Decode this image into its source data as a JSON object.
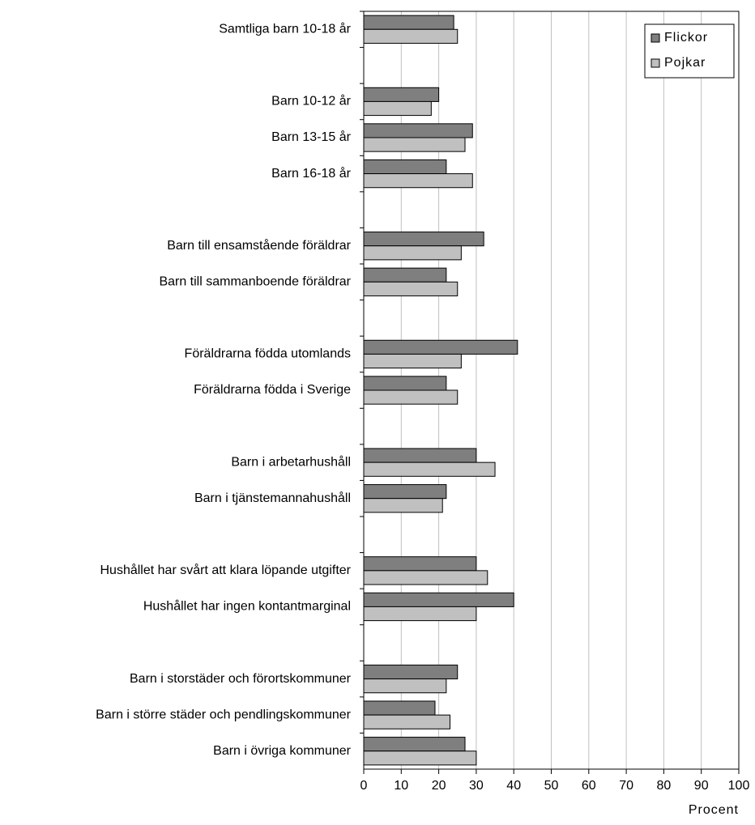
{
  "chart_data": {
    "type": "barh",
    "x_label": "Procent",
    "categories": [
      "Samtliga barn 10-18 år",
      null,
      "Barn 10-12 år",
      "Barn 13-15 år",
      "Barn 16-18 år",
      null,
      "Barn till ensamstående föräldrar",
      "Barn till sammanboende föräldrar",
      null,
      "Föräldrarna födda utomlands",
      "Föräldrarna födda i Sverige",
      null,
      "Barn i arbetarhushåll",
      "Barn i tjänstemannahushåll",
      null,
      "Hushållet har svårt att klara löpande utgifter",
      "Hushållet har ingen kontantmarginal",
      null,
      "Barn i storstäder och förortskommuner",
      "Barn i större städer och pendlingskommuner",
      "Barn i övriga kommuner"
    ],
    "series": [
      {
        "name": "Flickor",
        "color": "#7f7f7f",
        "values": [
          24,
          null,
          20,
          29,
          22,
          null,
          32,
          22,
          null,
          41,
          22,
          null,
          30,
          22,
          null,
          30,
          40,
          null,
          25,
          19,
          27
        ]
      },
      {
        "name": "Pojkar",
        "color": "#c0c0c0",
        "values": [
          25,
          null,
          18,
          27,
          29,
          null,
          26,
          25,
          null,
          26,
          25,
          null,
          35,
          21,
          null,
          33,
          30,
          null,
          22,
          23,
          30
        ]
      }
    ],
    "xlim": [
      0,
      100
    ],
    "xticks": [
      0,
      10,
      20,
      30,
      40,
      50,
      60,
      70,
      80,
      90,
      100
    ],
    "grid": true,
    "legend": "upper right"
  }
}
